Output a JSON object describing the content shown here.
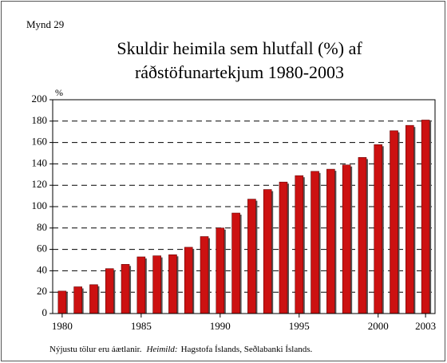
{
  "chart_data": {
    "type": "bar",
    "label": "Mynd 29",
    "title": [
      "Skuldir heimila sem hlutfall (%) af",
      "ráðstöfunartekjum 1980-2003"
    ],
    "y_label": "%",
    "x": [
      1980,
      1981,
      1982,
      1983,
      1984,
      1985,
      1986,
      1987,
      1988,
      1989,
      1990,
      1991,
      1992,
      1993,
      1994,
      1995,
      1996,
      1997,
      1998,
      1999,
      2000,
      2001,
      2002,
      2003
    ],
    "values": [
      21,
      25,
      27,
      42,
      46,
      53,
      54,
      55,
      62,
      72,
      80,
      94,
      107,
      116,
      123,
      129,
      133,
      135,
      139,
      146,
      158,
      171,
      176,
      181
    ],
    "color": "#cc1111",
    "xlim": [
      1979.4,
      2003.6
    ],
    "xticks": [
      1980,
      1985,
      1990,
      1995,
      2000,
      2003
    ],
    "ylim": [
      0,
      200
    ],
    "yticks": [
      0,
      20,
      40,
      60,
      80,
      100,
      120,
      140,
      160,
      180,
      200
    ],
    "grid": true,
    "note": {
      "text": "Nýjustu tölur eru áætlanir.",
      "source_label": "Heimild:",
      "source": "Hagstofa Íslands, Seðlabanki Íslands."
    }
  }
}
